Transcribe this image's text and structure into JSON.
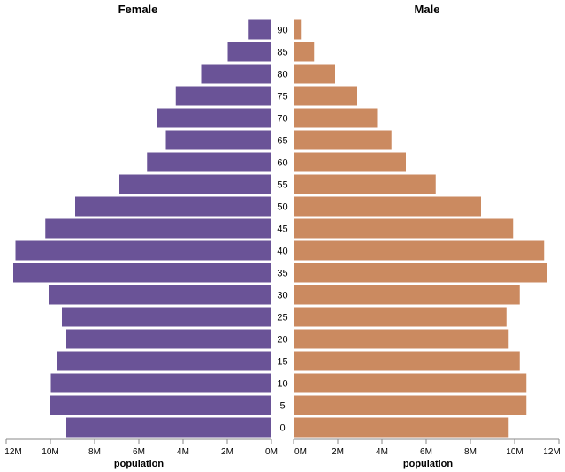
{
  "chart_data": {
    "type": "bar",
    "orientation": "horizontal",
    "layout": "population-pyramid",
    "categories": [
      "90",
      "85",
      "80",
      "75",
      "70",
      "65",
      "60",
      "55",
      "50",
      "45",
      "40",
      "35",
      "30",
      "25",
      "20",
      "15",
      "10",
      "5",
      "0"
    ],
    "series": [
      {
        "name": "Female",
        "color": "#6a5397",
        "values": [
          1050000,
          2000000,
          3200000,
          4350000,
          5200000,
          4800000,
          5650000,
          6900000,
          8900000,
          10250000,
          11600000,
          11700000,
          10100000,
          9500000,
          9300000,
          9700000,
          10000000,
          10050000,
          9300000
        ]
      },
      {
        "name": "Male",
        "color": "#cb8a60",
        "values": [
          350000,
          950000,
          1900000,
          2900000,
          3800000,
          4450000,
          5100000,
          6450000,
          8500000,
          9950000,
          11350000,
          11500000,
          10250000,
          9650000,
          9750000,
          10250000,
          10550000,
          10550000,
          9750000
        ]
      }
    ],
    "xlabel": "population",
    "xlim": [
      0,
      12000000
    ],
    "female_ticks": [
      "12M",
      "10M",
      "8M",
      "6M",
      "4M",
      "2M",
      "0M"
    ],
    "male_ticks": [
      "0M",
      "2M",
      "4M",
      "6M",
      "8M",
      "10M",
      "12M"
    ],
    "grid": false
  }
}
